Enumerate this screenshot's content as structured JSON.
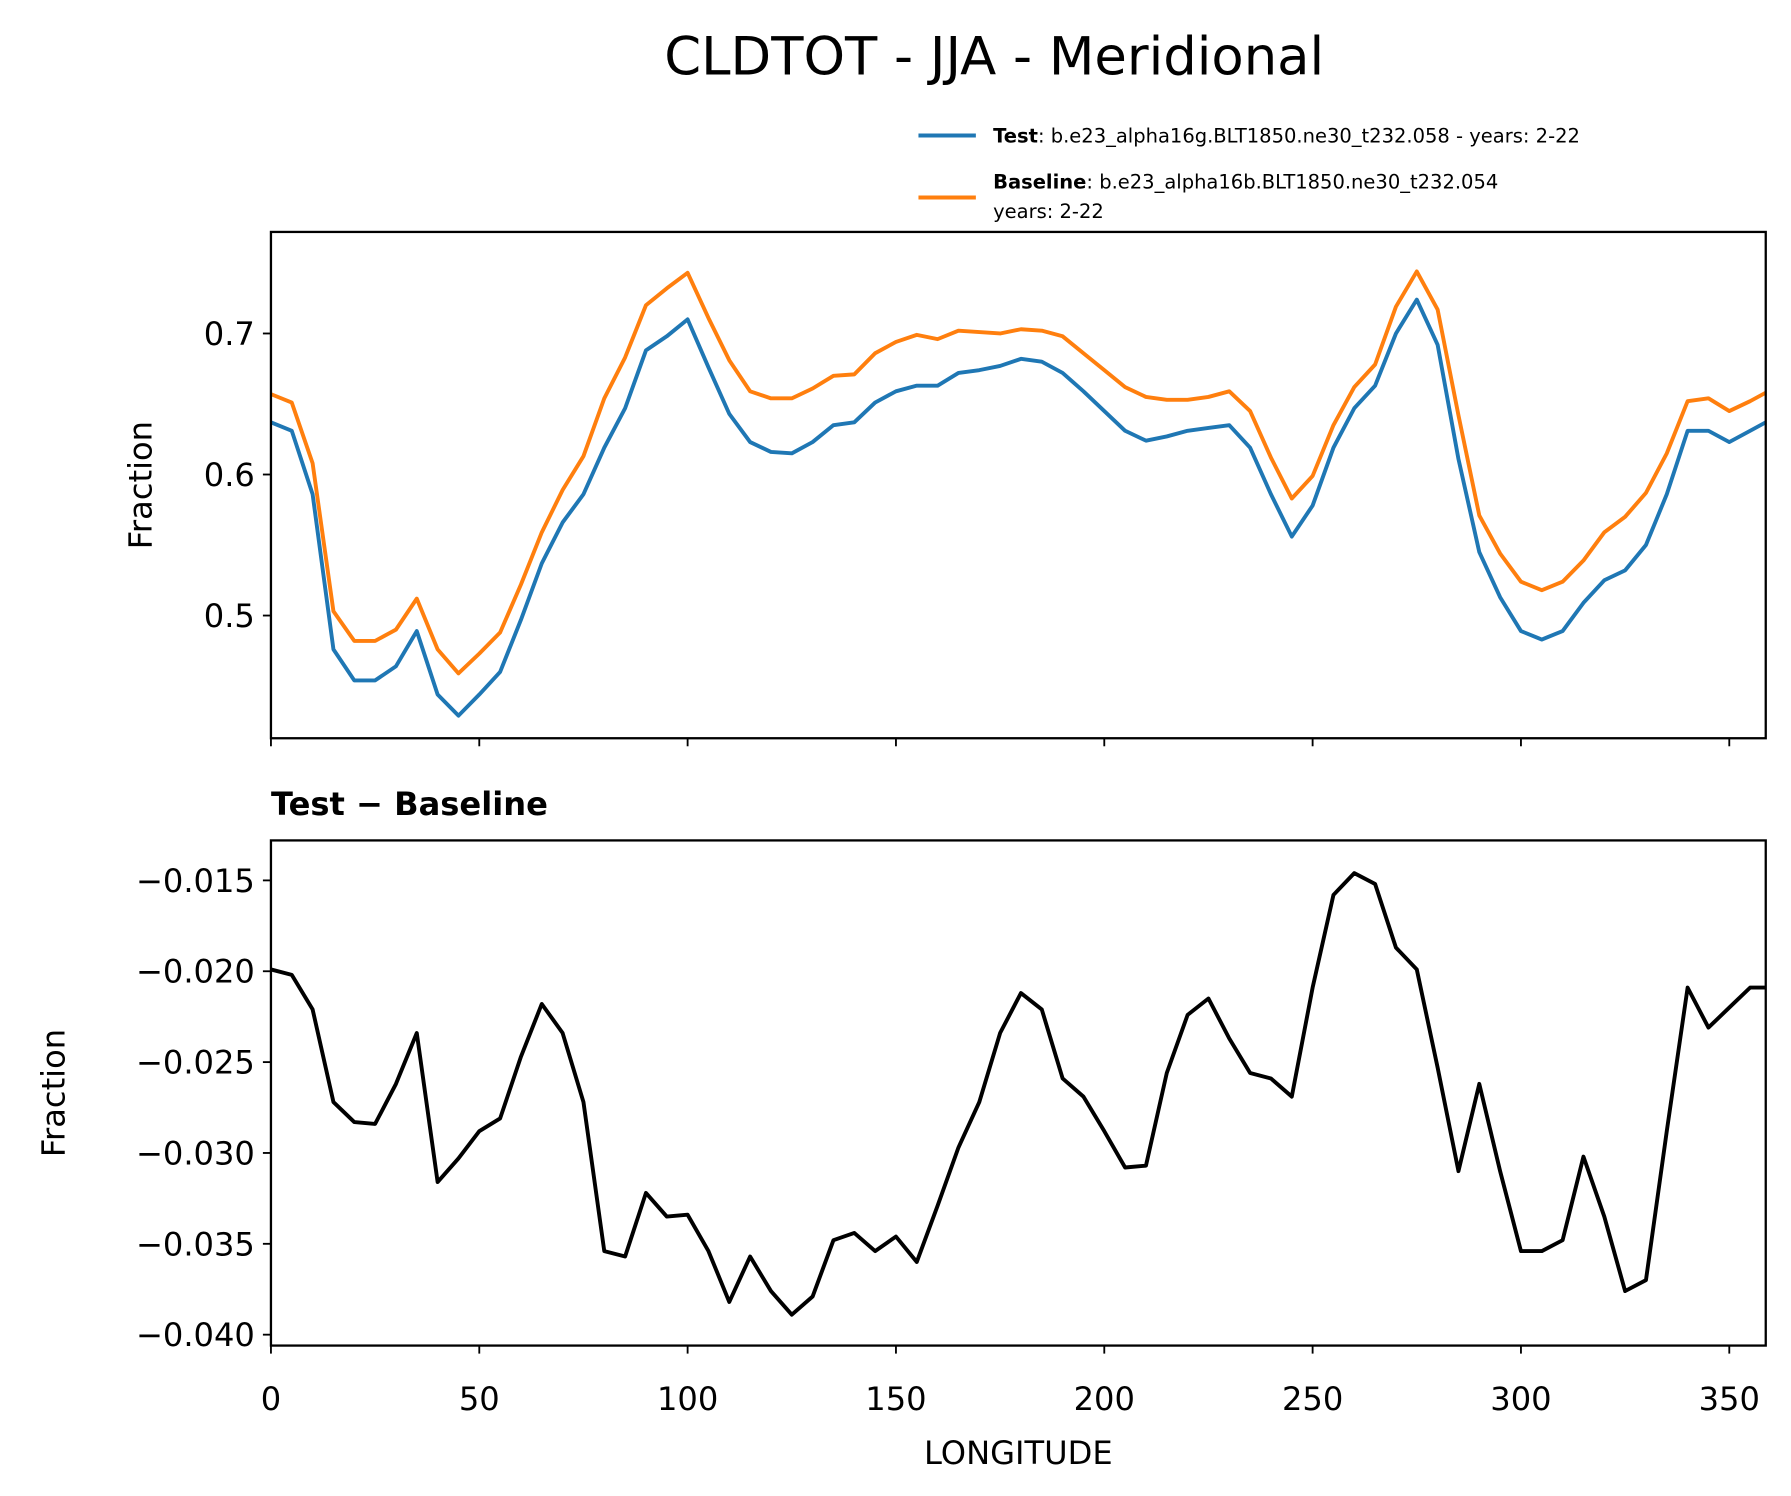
{
  "chart_data": [
    {
      "type": "line",
      "title": "CLDTOT - JJA - Meridional",
      "ylabel": "Fraction",
      "x": [
        0,
        5,
        10,
        15,
        20,
        25,
        30,
        35,
        40,
        45,
        50,
        55,
        60,
        65,
        70,
        75,
        80,
        85,
        90,
        95,
        100,
        105,
        110,
        115,
        120,
        125,
        130,
        135,
        140,
        145,
        150,
        155,
        160,
        165,
        170,
        175,
        180,
        185,
        190,
        195,
        200,
        205,
        210,
        215,
        220,
        225,
        230,
        235,
        240,
        245,
        250,
        255,
        260,
        265,
        270,
        275,
        280,
        285,
        290,
        295,
        300,
        305,
        310,
        315,
        320,
        325,
        330,
        335,
        340,
        345,
        350,
        355,
        358.75
      ],
      "series": [
        {
          "name": "Test",
          "description": [
            ": b.e23_alpha16g.BLT1850.ne30_t232.058 - years: 2-22"
          ],
          "color": "#1f77b4",
          "values": [
            0.637,
            0.631,
            0.586,
            0.476,
            0.454,
            0.454,
            0.464,
            0.489,
            0.444,
            0.429,
            0.444,
            0.46,
            0.497,
            0.537,
            0.566,
            0.586,
            0.619,
            0.647,
            0.688,
            0.698,
            0.71,
            0.676,
            0.643,
            0.623,
            0.616,
            0.615,
            0.623,
            0.635,
            0.637,
            0.651,
            0.659,
            0.663,
            0.663,
            0.672,
            0.674,
            0.677,
            0.682,
            0.68,
            0.672,
            0.659,
            0.645,
            0.631,
            0.624,
            0.627,
            0.631,
            0.633,
            0.635,
            0.619,
            0.586,
            0.556,
            0.578,
            0.619,
            0.647,
            0.663,
            0.7,
            0.724,
            0.692,
            0.611,
            0.545,
            0.513,
            0.489,
            0.483,
            0.489,
            0.509,
            0.525,
            0.532,
            0.55,
            0.586,
            0.631,
            0.631,
            0.623,
            0.631,
            0.637
          ]
        },
        {
          "name": "Baseline",
          "description": [
            ": b.e23_alpha16b.BLT1850.ne30_t232.054",
            "years: 2-22"
          ],
          "color": "#ff7f0e",
          "values": [
            0.657,
            0.651,
            0.608,
            0.503,
            0.482,
            0.482,
            0.49,
            0.512,
            0.476,
            0.459,
            0.473,
            0.488,
            0.522,
            0.559,
            0.589,
            0.613,
            0.654,
            0.683,
            0.72,
            0.732,
            0.743,
            0.711,
            0.681,
            0.659,
            0.654,
            0.654,
            0.661,
            0.67,
            0.671,
            0.686,
            0.694,
            0.699,
            0.696,
            0.702,
            0.701,
            0.7,
            0.703,
            0.702,
            0.698,
            0.686,
            0.674,
            0.662,
            0.655,
            0.653,
            0.653,
            0.655,
            0.659,
            0.645,
            0.612,
            0.583,
            0.599,
            0.635,
            0.662,
            0.678,
            0.719,
            0.744,
            0.717,
            0.642,
            0.571,
            0.544,
            0.524,
            0.518,
            0.524,
            0.539,
            0.559,
            0.57,
            0.587,
            0.615,
            0.652,
            0.654,
            0.645,
            0.652,
            0.658
          ]
        }
      ],
      "xlim": [
        0,
        358.75
      ],
      "ylim": [
        0.413,
        0.772
      ],
      "yticks": [
        0.5,
        0.6,
        0.7
      ]
    },
    {
      "type": "line",
      "title": "Test − Baseline",
      "xlabel": "LONGITUDE",
      "ylabel": "Fraction",
      "x": [
        0,
        5,
        10,
        15,
        20,
        25,
        30,
        35,
        40,
        45,
        50,
        55,
        60,
        65,
        70,
        75,
        80,
        85,
        90,
        95,
        100,
        105,
        110,
        115,
        120,
        125,
        130,
        135,
        140,
        145,
        150,
        155,
        160,
        165,
        170,
        175,
        180,
        185,
        190,
        195,
        200,
        205,
        210,
        215,
        220,
        225,
        230,
        235,
        240,
        245,
        250,
        255,
        260,
        265,
        270,
        275,
        280,
        285,
        290,
        295,
        300,
        305,
        310,
        315,
        320,
        325,
        330,
        335,
        340,
        345,
        350,
        355,
        358.75
      ],
      "series": [
        {
          "color": "#000000",
          "values": [
            -0.0199,
            -0.0202,
            -0.0221,
            -0.0272,
            -0.0283,
            -0.0284,
            -0.0262,
            -0.0234,
            -0.0316,
            -0.0303,
            -0.0288,
            -0.0281,
            -0.0247,
            -0.0218,
            -0.0234,
            -0.0272,
            -0.0354,
            -0.0357,
            -0.0322,
            -0.0335,
            -0.0334,
            -0.0354,
            -0.0382,
            -0.0357,
            -0.0376,
            -0.0389,
            -0.0379,
            -0.0348,
            -0.0344,
            -0.0354,
            -0.0346,
            -0.036,
            -0.0329,
            -0.0297,
            -0.0272,
            -0.0234,
            -0.0212,
            -0.0221,
            -0.0259,
            -0.0269,
            -0.0288,
            -0.0308,
            -0.0307,
            -0.0256,
            -0.0224,
            -0.0215,
            -0.0237,
            -0.0256,
            -0.0259,
            -0.0269,
            -0.0209,
            -0.0158,
            -0.0146,
            -0.0152,
            -0.0187,
            -0.0199,
            -0.0253,
            -0.031,
            -0.0262,
            -0.031,
            -0.0354,
            -0.0354,
            -0.0348,
            -0.0302,
            -0.0335,
            -0.0376,
            -0.037,
            -0.0288,
            -0.0209,
            -0.0231,
            -0.022,
            -0.0209,
            -0.0209
          ]
        }
      ],
      "xlim": [
        0,
        358.75
      ],
      "ylim": [
        -0.0406,
        -0.0128
      ],
      "xticks": [
        0,
        50,
        100,
        150,
        200,
        250,
        300,
        350
      ],
      "yticks": [
        {
          "value": -0.015,
          "label": "−0.015"
        },
        {
          "value": -0.02,
          "label": "−0.020"
        },
        {
          "value": -0.025,
          "label": "−0.025"
        },
        {
          "value": -0.03,
          "label": "−0.030"
        },
        {
          "value": -0.035,
          "label": "−0.035"
        },
        {
          "value": -0.04,
          "label": "−0.040"
        }
      ]
    }
  ]
}
